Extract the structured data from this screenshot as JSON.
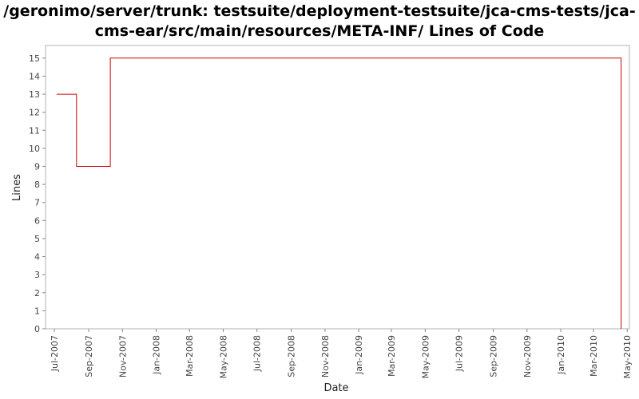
{
  "chart_data": {
    "type": "line",
    "title": "/geronimo/server/trunk: testsuite/deployment-testsuite/jca-cms-tests/jca-cms-ear/src/main/resources/META-INF/ Lines of Code",
    "xlabel": "Date",
    "ylabel": "Lines",
    "grid": false,
    "legend": "none",
    "step": true,
    "series_color": "#cc0000",
    "xlim": [
      "2007-06-15",
      "2010-05-05"
    ],
    "ylim": [
      0,
      15.7
    ],
    "x_ticks": [
      "Jul-2007",
      "Sep-2007",
      "Nov-2007",
      "Jan-2008",
      "Mar-2008",
      "May-2008",
      "Jul-2008",
      "Sep-2008",
      "Nov-2008",
      "Jan-2009",
      "Mar-2009",
      "May-2009",
      "Jul-2009",
      "Sep-2009",
      "Nov-2009",
      "Jan-2010",
      "Mar-2010",
      "May-2010"
    ],
    "x_tick_dates": [
      "2007-07-01",
      "2007-09-01",
      "2007-11-01",
      "2008-01-01",
      "2008-03-01",
      "2008-05-01",
      "2008-07-01",
      "2008-09-01",
      "2008-11-01",
      "2009-01-01",
      "2009-03-01",
      "2009-05-01",
      "2009-07-01",
      "2009-09-01",
      "2009-11-01",
      "2010-01-01",
      "2010-03-01",
      "2010-05-01"
    ],
    "y_ticks": [
      0,
      1,
      2,
      3,
      4,
      5,
      6,
      7,
      8,
      9,
      10,
      11,
      12,
      13,
      14,
      15
    ],
    "series": [
      {
        "x": [
          "2007-07-05",
          "2007-08-10",
          "2007-10-10",
          "2010-04-20",
          "2010-04-20"
        ],
        "y": [
          13,
          9,
          15,
          15,
          0
        ]
      }
    ]
  }
}
